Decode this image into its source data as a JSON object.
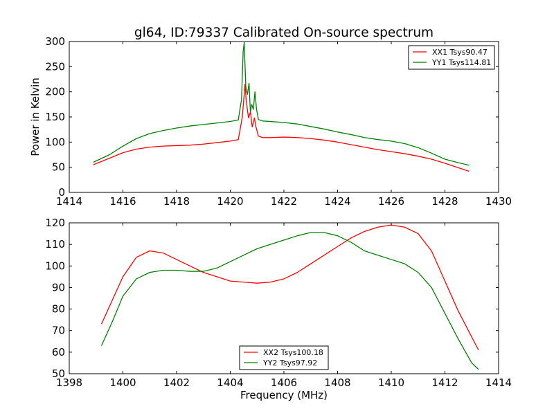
{
  "title": "gl64, ID:79337 Calibrated On-source spectrum",
  "colors": {
    "xx": "#ff0000",
    "yy": "#008000",
    "axis": "#000000",
    "background": "#ffffff"
  },
  "chart_data": [
    {
      "type": "line",
      "title": "gl64, ID:79337 Calibrated On-source spectrum",
      "xlabel": "",
      "ylabel": "Power in Kelvin",
      "xlim": [
        1414,
        1430
      ],
      "ylim": [
        0,
        300
      ],
      "xticks": [
        "1414",
        "1416",
        "1418",
        "1420",
        "1422",
        "1424",
        "1426",
        "1428",
        "1430"
      ],
      "yticks": [
        "0",
        "50",
        "100",
        "150",
        "200",
        "250",
        "300"
      ],
      "grid": false,
      "legend_position": "top-right",
      "series": [
        {
          "name": "XX1 Tsys90.47",
          "color": "#ff0000",
          "x": [
            1414.9,
            1415.5,
            1416.0,
            1416.5,
            1417.0,
            1417.5,
            1418.0,
            1418.5,
            1419.0,
            1419.5,
            1420.0,
            1420.3,
            1420.45,
            1420.55,
            1420.6,
            1420.68,
            1420.75,
            1420.82,
            1420.9,
            1420.95,
            1421.05,
            1421.2,
            1421.5,
            1422.0,
            1422.5,
            1423.0,
            1423.5,
            1424.0,
            1424.5,
            1425.0,
            1425.5,
            1426.0,
            1426.5,
            1427.0,
            1427.5,
            1428.0,
            1428.5,
            1428.9
          ],
          "y": [
            55,
            68,
            79,
            86,
            90,
            92,
            93,
            94,
            96,
            99,
            102,
            105,
            150,
            215,
            180,
            148,
            160,
            130,
            148,
            132,
            112,
            109,
            109,
            110,
            109,
            107,
            104,
            100,
            95,
            90,
            85,
            81,
            77,
            72,
            66,
            58,
            49,
            42
          ]
        },
        {
          "name": "YY1 Tsys114.81",
          "color": "#008000",
          "x": [
            1414.9,
            1415.5,
            1416.0,
            1416.5,
            1417.0,
            1417.5,
            1418.0,
            1418.5,
            1419.0,
            1419.5,
            1420.0,
            1420.3,
            1420.42,
            1420.48,
            1420.52,
            1420.58,
            1420.64,
            1420.7,
            1420.75,
            1420.8,
            1420.86,
            1420.92,
            1420.98,
            1421.05,
            1421.2,
            1421.5,
            1422.0,
            1422.5,
            1423.0,
            1423.5,
            1424.0,
            1424.5,
            1425.0,
            1425.5,
            1426.0,
            1426.5,
            1427.0,
            1427.5,
            1428.0,
            1428.5,
            1428.9
          ],
          "y": [
            60,
            75,
            92,
            107,
            117,
            123,
            128,
            132,
            135,
            138,
            141,
            144,
            185,
            280,
            298,
            210,
            195,
            217,
            160,
            175,
            165,
            200,
            165,
            145,
            142,
            141,
            139,
            136,
            131,
            126,
            120,
            115,
            109,
            105,
            102,
            97,
            89,
            78,
            66,
            59,
            54
          ]
        }
      ]
    },
    {
      "type": "line",
      "title": "",
      "xlabel": "Frequency (MHz)",
      "ylabel": "",
      "xlim": [
        1398,
        1414
      ],
      "ylim": [
        50,
        120
      ],
      "xticks": [
        "1398",
        "1400",
        "1402",
        "1404",
        "1406",
        "1408",
        "1410",
        "1412",
        "1414"
      ],
      "yticks": [
        "50",
        "60",
        "70",
        "80",
        "90",
        "100",
        "110",
        "120"
      ],
      "grid": false,
      "legend_position": "bottom-center",
      "series": [
        {
          "name": "XX2 Tsys100.18",
          "color": "#ff0000",
          "x": [
            1399.2,
            1399.6,
            1400.0,
            1400.5,
            1401.0,
            1401.5,
            1402.0,
            1402.5,
            1403.0,
            1403.5,
            1404.0,
            1404.5,
            1405.0,
            1405.5,
            1406.0,
            1406.5,
            1407.0,
            1407.5,
            1408.0,
            1408.5,
            1409.0,
            1409.5,
            1410.0,
            1410.5,
            1411.0,
            1411.5,
            1412.0,
            1412.5,
            1413.0,
            1413.25
          ],
          "y": [
            73,
            84,
            95,
            104,
            107,
            106,
            103,
            100,
            97,
            95,
            93,
            92.5,
            92,
            92.5,
            94,
            97,
            101,
            105,
            109,
            113,
            116,
            118,
            119,
            118,
            115,
            107,
            93,
            79,
            67,
            61
          ]
        },
        {
          "name": "YY2 Tsys97.92",
          "color": "#008000",
          "x": [
            1399.2,
            1399.6,
            1400.0,
            1400.5,
            1401.0,
            1401.5,
            1402.0,
            1402.5,
            1403.0,
            1403.5,
            1404.0,
            1404.5,
            1405.0,
            1405.5,
            1406.0,
            1406.5,
            1407.0,
            1407.5,
            1408.0,
            1408.5,
            1409.0,
            1409.5,
            1410.0,
            1410.5,
            1411.0,
            1411.5,
            1412.0,
            1412.5,
            1413.0,
            1413.25
          ],
          "y": [
            63,
            74,
            86,
            94,
            97,
            98,
            98,
            97.5,
            97.5,
            99,
            102,
            105,
            108,
            110,
            112,
            114,
            115.5,
            115.5,
            114,
            111,
            107,
            105,
            103,
            101,
            97,
            90,
            78,
            66,
            55,
            52
          ]
        }
      ]
    }
  ]
}
